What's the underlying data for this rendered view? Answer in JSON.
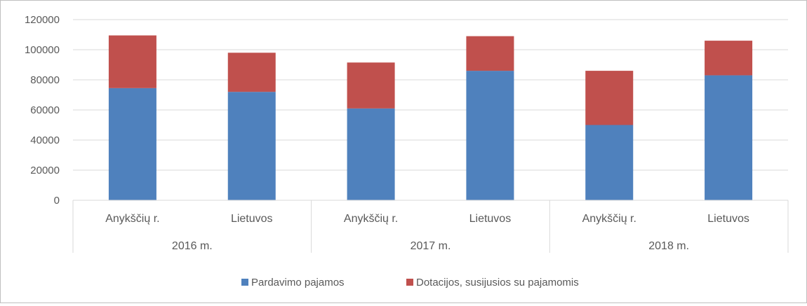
{
  "chart_data": {
    "type": "bar",
    "stacked": true,
    "groups": [
      {
        "label": "2016 m.",
        "categories": [
          "Anykščių r.",
          "Lietuvos"
        ]
      },
      {
        "label": "2017 m.",
        "categories": [
          "Anykščių r.",
          "Lietuvos"
        ]
      },
      {
        "label": "2018 m.",
        "categories": [
          "Anykščių r.",
          "Lietuvos"
        ]
      }
    ],
    "categories": [
      "Anykščių r.",
      "Lietuvos",
      "Anykščių r.",
      "Lietuvos",
      "Anykščių r.",
      "Lietuvos"
    ],
    "series": [
      {
        "name": "Pardavimo pajamos",
        "color": "#4f81bd",
        "values": [
          74500,
          72000,
          61000,
          86000,
          50000,
          83000
        ]
      },
      {
        "name": "Dotacijos, susijusios su pajamomis",
        "color": "#c0504d",
        "values": [
          35000,
          26000,
          30500,
          23000,
          36000,
          23000
        ]
      }
    ],
    "ylim": [
      0,
      120000
    ],
    "yticks": [
      0,
      20000,
      40000,
      60000,
      80000,
      100000,
      120000
    ],
    "grid": true,
    "legend": "bottom",
    "title": "",
    "xlabel": "",
    "ylabel": ""
  }
}
